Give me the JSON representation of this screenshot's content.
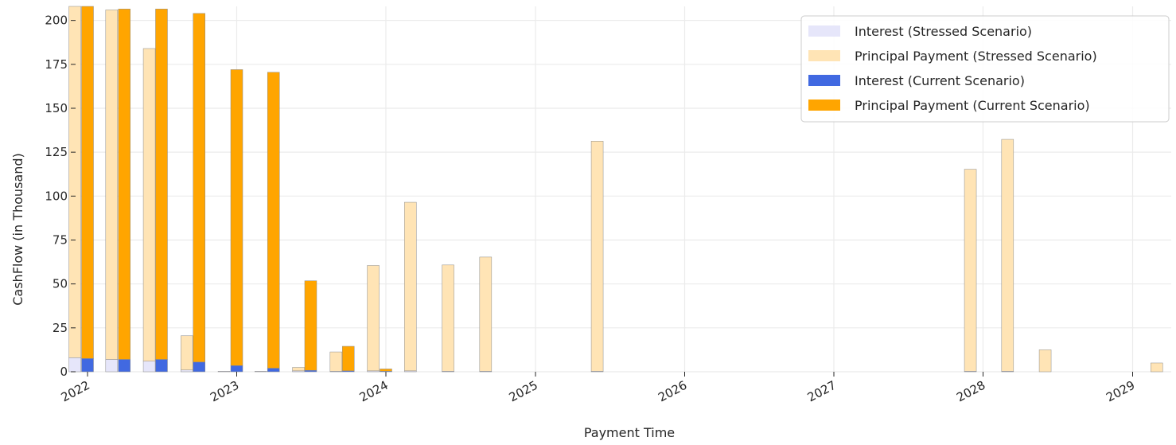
{
  "chart_data": {
    "type": "bar",
    "stacked": true,
    "title": "",
    "xlabel": "Payment Time",
    "ylabel": "CashFlow (in Thousand)",
    "ylim": [
      0,
      208
    ],
    "yticks": [
      0,
      25,
      50,
      75,
      100,
      125,
      150,
      175,
      200
    ],
    "xticks": [
      "2022",
      "2023",
      "2024",
      "2025",
      "2026",
      "2027",
      "2028",
      "2029"
    ],
    "grid": true,
    "legend_position": "top-right",
    "colors": {
      "interest_stressed": "#e6e6fa",
      "principal_stressed": "#ffe4b5",
      "interest_current": "#4169e1",
      "principal_current": "#ffa500",
      "grid": "#ebebeb",
      "bar_edge": "#8c8c8c"
    },
    "series": [
      {
        "name": "Interest (Stressed Scenario)",
        "key": "interest_stressed",
        "group": "stressed",
        "layer": "interest"
      },
      {
        "name": "Principal Payment (Stressed Scenario)",
        "key": "principal_stressed",
        "group": "stressed",
        "layer": "principal"
      },
      {
        "name": "Interest (Current Scenario)",
        "key": "interest_current",
        "group": "current",
        "layer": "interest"
      },
      {
        "name": "Principal Payment (Current Scenario)",
        "key": "principal_current",
        "group": "current",
        "layer": "principal"
      }
    ],
    "stressed": [
      {
        "date": "2021-12-01",
        "interest": 8,
        "principal": 200
      },
      {
        "date": "2022-03-01",
        "interest": 7,
        "principal": 199
      },
      {
        "date": "2022-06-01",
        "interest": 6,
        "principal": 178
      },
      {
        "date": "2022-09-01",
        "interest": 1,
        "principal": 19.5
      },
      {
        "date": "2022-12-01",
        "interest": 0.3,
        "principal": 0
      },
      {
        "date": "2023-03-01",
        "interest": 0.3,
        "principal": 0
      },
      {
        "date": "2023-06-01",
        "interest": 0.5,
        "principal": 2
      },
      {
        "date": "2023-09-01",
        "interest": 0.3,
        "principal": 11
      },
      {
        "date": "2023-12-01",
        "interest": 0.5,
        "principal": 60
      },
      {
        "date": "2024-03-01",
        "interest": 0.5,
        "principal": 96
      },
      {
        "date": "2024-06-01",
        "interest": 0.3,
        "principal": 60.5
      },
      {
        "date": "2024-09-01",
        "interest": 0.3,
        "principal": 65
      },
      {
        "date": "2025-06-01",
        "interest": 0.3,
        "principal": 131
      },
      {
        "date": "2027-12-01",
        "interest": 0.3,
        "principal": 115
      },
      {
        "date": "2028-03-01",
        "interest": 0.3,
        "principal": 132
      },
      {
        "date": "2028-06-01",
        "interest": 0,
        "principal": 12.5
      },
      {
        "date": "2029-03-01",
        "interest": 0,
        "principal": 5
      }
    ],
    "current": [
      {
        "date": "2022-01-01",
        "interest": 7.5,
        "principal": 200.5
      },
      {
        "date": "2022-04-01",
        "interest": 7,
        "principal": 199.5
      },
      {
        "date": "2022-07-01",
        "interest": 7,
        "principal": 199.5
      },
      {
        "date": "2022-10-01",
        "interest": 5.5,
        "principal": 198.5
      },
      {
        "date": "2023-01-01",
        "interest": 3.5,
        "principal": 168.5
      },
      {
        "date": "2023-04-01",
        "interest": 2,
        "principal": 168.5
      },
      {
        "date": "2023-07-01",
        "interest": 0.8,
        "principal": 51
      },
      {
        "date": "2023-10-01",
        "interest": 0.5,
        "principal": 14
      },
      {
        "date": "2024-01-01",
        "interest": 0.3,
        "principal": 1.3
      }
    ]
  }
}
